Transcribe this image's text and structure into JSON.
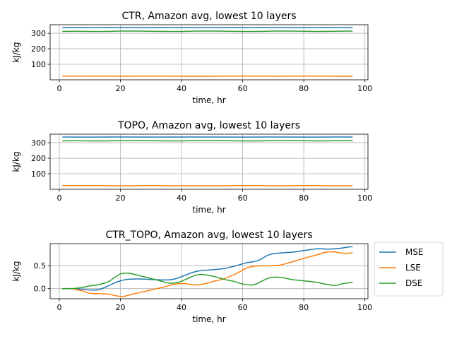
{
  "chart_data": [
    {
      "type": "line",
      "title": "CTR, Amazon avg, lowest 10 layers",
      "xlabel": "time, hr",
      "ylabel": "kJ/kg",
      "xlim": [
        -3,
        101
      ],
      "ylim": [
        0,
        355
      ],
      "xticks": [
        0,
        20,
        40,
        60,
        80,
        100
      ],
      "yticks": [
        100,
        200,
        300
      ],
      "grid": true,
      "series": [
        {
          "color": "#1f77b4",
          "x": [
            1,
            10,
            20,
            30,
            40,
            50,
            60,
            70,
            80,
            90,
            96
          ],
          "values": [
            337,
            336,
            337,
            336,
            337,
            337,
            336,
            337,
            336,
            337,
            337
          ]
        },
        {
          "color": "#2ca02c",
          "x": [
            1,
            5,
            10,
            15,
            20,
            25,
            30,
            35,
            40,
            45,
            50,
            55,
            60,
            65,
            70,
            75,
            80,
            85,
            90,
            96
          ],
          "values": [
            312,
            313,
            312,
            312,
            314,
            314,
            313,
            312,
            312,
            314,
            314,
            313,
            312,
            312,
            314,
            314,
            313,
            312,
            313,
            314
          ]
        },
        {
          "color": "#ff7f0e",
          "x": [
            1,
            10,
            20,
            30,
            40,
            50,
            60,
            70,
            80,
            90,
            96
          ],
          "values": [
            24,
            24,
            23,
            24,
            23,
            23,
            24,
            23,
            24,
            23,
            23
          ]
        }
      ]
    },
    {
      "type": "line",
      "title": "TOPO, Amazon avg, lowest 10 layers",
      "xlabel": "time, hr",
      "ylabel": "kJ/kg",
      "xlim": [
        -3,
        101
      ],
      "ylim": [
        0,
        355
      ],
      "xticks": [
        0,
        20,
        40,
        60,
        80,
        100
      ],
      "yticks": [
        100,
        200,
        300
      ],
      "grid": true,
      "series": [
        {
          "color": "#1f77b4",
          "x": [
            1,
            10,
            20,
            30,
            40,
            50,
            60,
            70,
            80,
            90,
            96
          ],
          "values": [
            337,
            336,
            337,
            336,
            337,
            337,
            336,
            337,
            336,
            337,
            337
          ]
        },
        {
          "color": "#2ca02c",
          "x": [
            1,
            5,
            10,
            15,
            20,
            25,
            30,
            35,
            40,
            45,
            50,
            55,
            60,
            65,
            70,
            75,
            80,
            85,
            90,
            96
          ],
          "values": [
            312,
            313,
            312,
            312,
            314,
            314,
            313,
            312,
            312,
            314,
            314,
            313,
            312,
            312,
            314,
            314,
            313,
            312,
            313,
            314
          ]
        },
        {
          "color": "#ff7f0e",
          "x": [
            1,
            10,
            20,
            30,
            40,
            50,
            60,
            70,
            80,
            90,
            96
          ],
          "values": [
            24,
            24,
            23,
            24,
            23,
            23,
            24,
            23,
            24,
            23,
            23
          ]
        }
      ]
    },
    {
      "type": "line",
      "title": "CTR_TOPO, Amazon avg, lowest 10 layers",
      "xlabel": "time, hr",
      "ylabel": "kJ/kg",
      "xlim": [
        -3,
        101
      ],
      "ylim": [
        -0.22,
        0.98
      ],
      "xticks": [
        0,
        20,
        40,
        60,
        80,
        100
      ],
      "yticks": [
        0.0,
        0.5
      ],
      "grid": true,
      "legend": "outside-right",
      "series": [
        {
          "name": "MSE",
          "color": "#1f77b4",
          "x": [
            1,
            4,
            7,
            10,
            13,
            16,
            19,
            22,
            26,
            30,
            34,
            37,
            40,
            43,
            46,
            50,
            54,
            58,
            61,
            65,
            68,
            70,
            73,
            77,
            81,
            85,
            88,
            92,
            95,
            96
          ],
          "values": [
            0.0,
            0.0,
            -0.01,
            -0.03,
            -0.02,
            0.06,
            0.15,
            0.2,
            0.21,
            0.2,
            0.19,
            0.2,
            0.26,
            0.34,
            0.39,
            0.41,
            0.44,
            0.5,
            0.56,
            0.61,
            0.72,
            0.76,
            0.78,
            0.8,
            0.84,
            0.87,
            0.86,
            0.88,
            0.91,
            0.91
          ]
        },
        {
          "name": "LSE",
          "color": "#ff7f0e",
          "x": [
            1,
            4,
            7,
            10,
            13,
            16,
            19,
            21,
            24,
            28,
            32,
            35,
            38,
            41,
            44,
            47,
            50,
            54,
            58,
            61,
            64,
            68,
            72,
            76,
            80,
            84,
            87,
            90,
            93,
            96
          ],
          "values": [
            0.0,
            0.0,
            -0.04,
            -0.1,
            -0.11,
            -0.12,
            -0.16,
            -0.17,
            -0.12,
            -0.06,
            0.0,
            0.05,
            0.1,
            0.11,
            0.08,
            0.1,
            0.15,
            0.22,
            0.33,
            0.44,
            0.49,
            0.5,
            0.51,
            0.58,
            0.66,
            0.73,
            0.79,
            0.8,
            0.77,
            0.78
          ]
        },
        {
          "name": "DSE",
          "color": "#2ca02c",
          "x": [
            1,
            4,
            7,
            10,
            13,
            16,
            18,
            20,
            22,
            24,
            27,
            30,
            33,
            36,
            39,
            42,
            45,
            48,
            51,
            54,
            57,
            60,
            63,
            65,
            68,
            70,
            73,
            76,
            80,
            84,
            87,
            90,
            93,
            96
          ],
          "values": [
            0.0,
            0.0,
            0.02,
            0.06,
            0.09,
            0.15,
            0.24,
            0.32,
            0.34,
            0.32,
            0.27,
            0.22,
            0.17,
            0.12,
            0.14,
            0.22,
            0.3,
            0.3,
            0.26,
            0.2,
            0.16,
            0.1,
            0.08,
            0.12,
            0.22,
            0.25,
            0.24,
            0.2,
            0.17,
            0.14,
            0.1,
            0.07,
            0.11,
            0.14
          ]
        }
      ]
    }
  ]
}
